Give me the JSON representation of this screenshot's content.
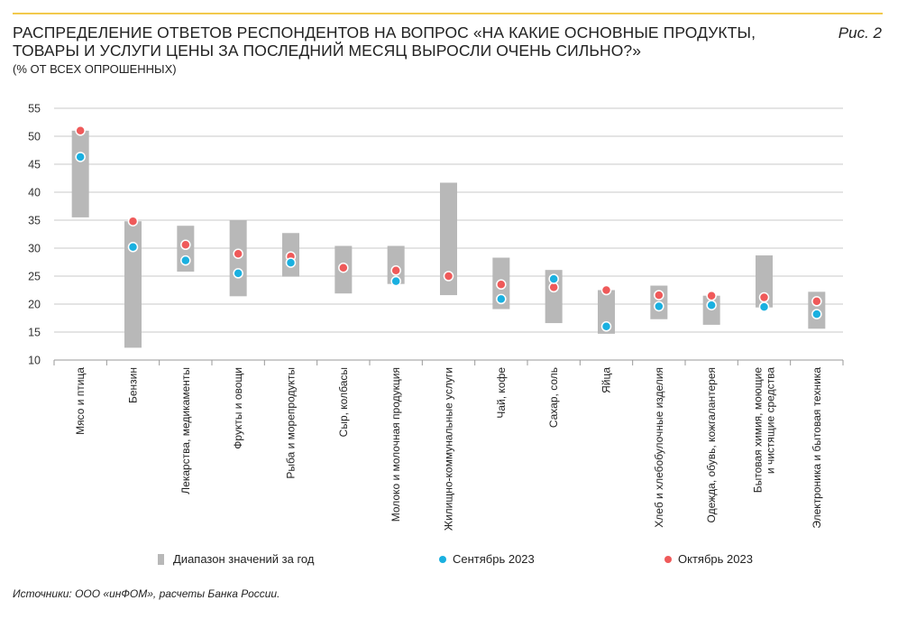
{
  "header": {
    "title": "РАСПРЕДЕЛЕНИЕ ОТВЕТОВ РЕСПОНДЕНТОВ НА ВОПРОС «НА КАКИЕ ОСНОВНЫЕ ПРОДУКТЫ, ТОВАРЫ И УСЛУГИ ЦЕНЫ ЗА ПОСЛЕДНИЙ МЕСЯЦ ВЫРОСЛИ ОЧЕНЬ СИЛЬНО?»",
    "subtitle": "(% ОТ ВСЕХ ОПРОШЕННЫХ)",
    "figure_label": "Рис. 2"
  },
  "legend": {
    "range_label": "Диапазон значений за год",
    "sep_label": "Сентябрь 2023",
    "oct_label": "Октябрь 2023"
  },
  "source": "Источники: ООО «инФОМ», расчеты Банка России.",
  "colors": {
    "range": "#b8b8b8",
    "sep": "#1ab0e0",
    "oct": "#ef5a5a",
    "grid": "#c8c8c8",
    "accent_line": "#f2c94c"
  },
  "chart_data": {
    "type": "range-dot",
    "ylim": [
      10,
      55
    ],
    "yticks": [
      10,
      15,
      20,
      25,
      30,
      35,
      40,
      45,
      50,
      55
    ],
    "categories": [
      {
        "label": [
          "Мясо и птица"
        ],
        "min": 35.5,
        "max": 51,
        "sep": 46.3,
        "oct": 51
      },
      {
        "label": [
          "Бензин"
        ],
        "min": 12.2,
        "max": 34.8,
        "sep": 30.2,
        "oct": 34.8
      },
      {
        "label": [
          "Лекарства, медикаменты"
        ],
        "min": 25.8,
        "max": 34,
        "sep": 27.8,
        "oct": 30.6
      },
      {
        "label": [
          "Фрукты и овощи"
        ],
        "min": 21.4,
        "max": 35,
        "sep": 25.5,
        "oct": 29
      },
      {
        "label": [
          "Рыба и морепродукты"
        ],
        "min": 24.9,
        "max": 32.7,
        "sep": 27.4,
        "oct": 28.5
      },
      {
        "label": [
          "Сыр, колбасы"
        ],
        "min": 21.9,
        "max": 30.4,
        "sep": null,
        "oct": 26.5
      },
      {
        "label": [
          "Молоко и молочная продукция"
        ],
        "min": 23.6,
        "max": 30.4,
        "sep": 24.1,
        "oct": 26
      },
      {
        "label": [
          "Жилищно-коммунальные услуги"
        ],
        "min": 21.6,
        "max": 41.7,
        "sep": null,
        "oct": 25
      },
      {
        "label": [
          "Чай, кофе"
        ],
        "min": 19.1,
        "max": 28.3,
        "sep": 20.9,
        "oct": 23.5
      },
      {
        "label": [
          "Сахар, соль"
        ],
        "min": 16.6,
        "max": 26.1,
        "sep": 24.5,
        "oct": 23
      },
      {
        "label": [
          "Яйца"
        ],
        "min": 14.7,
        "max": 22.5,
        "sep": 16.0,
        "oct": 22.5
      },
      {
        "label": [
          "Хлеб и хлебобулочные изделия"
        ],
        "min": 17.3,
        "max": 23.3,
        "sep": 19.6,
        "oct": 21.6
      },
      {
        "label": [
          "Одежда, обувь, кожгалантерея"
        ],
        "min": 16.3,
        "max": 21.5,
        "sep": 19.8,
        "oct": 21.5
      },
      {
        "label": [
          "Бытовая химия, моющие",
          "и чистящие средства"
        ],
        "min": 19.4,
        "max": 28.7,
        "sep": 19.5,
        "oct": 21.2
      },
      {
        "label": [
          "Электроника и бытовая техника"
        ],
        "min": 15.6,
        "max": 22.2,
        "sep": 18.2,
        "oct": 20.5
      }
    ]
  }
}
